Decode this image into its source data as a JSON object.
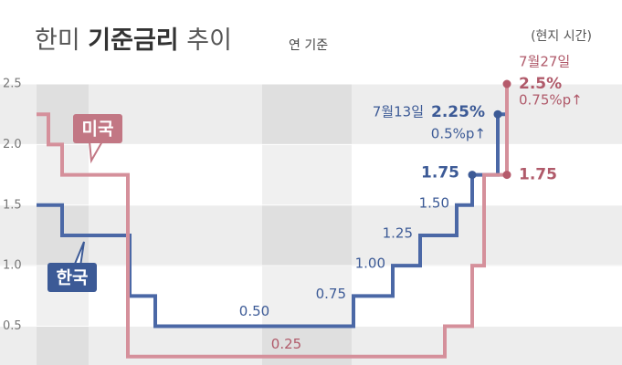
{
  "chart_data": {
    "type": "step",
    "title": [
      "한미 ",
      "기준금리",
      " 추이"
    ],
    "subtitle": "연 기준",
    "note": "(현지 시간)",
    "xlim": [
      0,
      681
    ],
    "ylim": [
      0.18,
      2.5
    ],
    "yticks": [
      {
        "value": 0.5,
        "label": "0.5"
      },
      {
        "value": 1,
        "label": "1.0"
      },
      {
        "value": 1.5,
        "label": "1.5"
      },
      {
        "value": 2,
        "label": "2.0"
      },
      {
        "value": 2.5,
        "label": "2.5"
      }
    ],
    "series": [
      {
        "name": "한국",
        "color": "#4b68a6",
        "x": [
          40,
          68,
          142,
          170,
          387,
          430,
          460,
          500,
          517,
          545,
          555
        ],
        "values": [
          1.5,
          1.25,
          0.75,
          0.5,
          0.75,
          1,
          1.25,
          1.5,
          1.75,
          2.25,
          2.25
        ],
        "value_labels": [
          null,
          null,
          null,
          "0.50",
          "0.75",
          "1.00",
          "1.25",
          "1.50",
          "1.75",
          "2.25%",
          null
        ]
      },
      {
        "name": "미국",
        "color": "#d5909b",
        "x": [
          40,
          53,
          68,
          140,
          487,
          517,
          530,
          555
        ],
        "values": [
          2.25,
          2,
          1.75,
          0.25,
          0.5,
          1,
          1.75,
          2.5
        ],
        "value_labels": [
          null,
          null,
          null,
          "0.25",
          null,
          null,
          "1.75",
          "2.5%"
        ]
      }
    ],
    "annotations": [
      "7월13일",
      "0.5%p↑",
      "7월27일",
      "0.75%p↑"
    ]
  }
}
